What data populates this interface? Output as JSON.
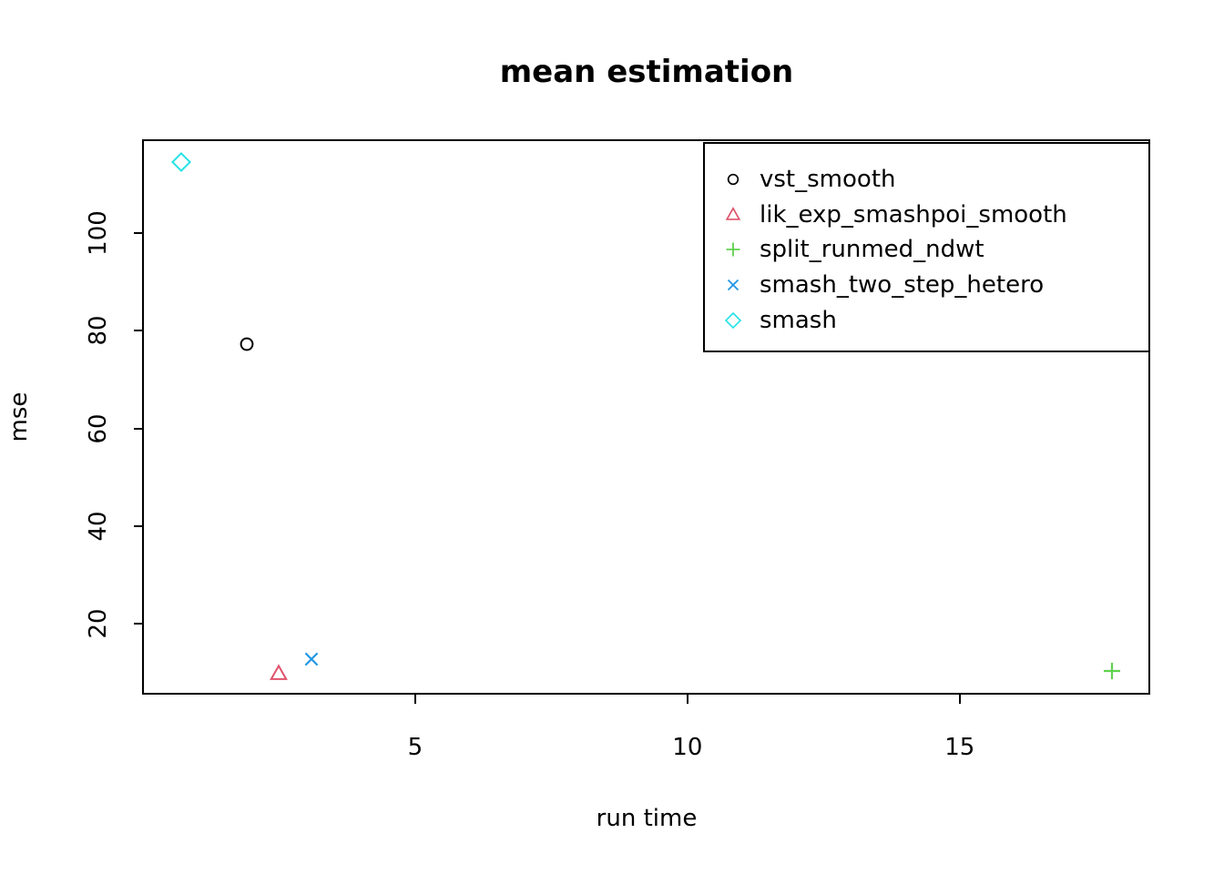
{
  "chart_data": {
    "type": "scatter",
    "title": "mean estimation",
    "xlabel": "run time",
    "ylabel": "mse",
    "xlim": [
      0,
      18.5
    ],
    "ylim": [
      5.5,
      119
    ],
    "x_ticks": [
      5,
      10,
      15
    ],
    "y_ticks": [
      20,
      40,
      60,
      80,
      100
    ],
    "grid": false,
    "legend_position": "top-right",
    "axis_color": "#000000",
    "background_color": "#ffffff",
    "series": [
      {
        "name": "vst_smooth",
        "marker": "circle",
        "color": "#000000",
        "points": [
          [
            1.9,
            77.2
          ]
        ]
      },
      {
        "name": "lik_exp_smashpoi_smooth",
        "marker": "triangle",
        "color": "#DF536B",
        "points": [
          [
            2.5,
            9.8
          ]
        ]
      },
      {
        "name": "split_runmed_ndwt",
        "marker": "plus",
        "color": "#61D04F",
        "points": [
          [
            17.8,
            10.3
          ]
        ]
      },
      {
        "name": "smash_two_step_hetero",
        "marker": "x",
        "color": "#2297E6",
        "points": [
          [
            3.1,
            12.8
          ]
        ]
      },
      {
        "name": "smash",
        "marker": "diamond",
        "color": "#28E2E5",
        "points": [
          [
            0.7,
            114.5
          ]
        ]
      }
    ]
  }
}
